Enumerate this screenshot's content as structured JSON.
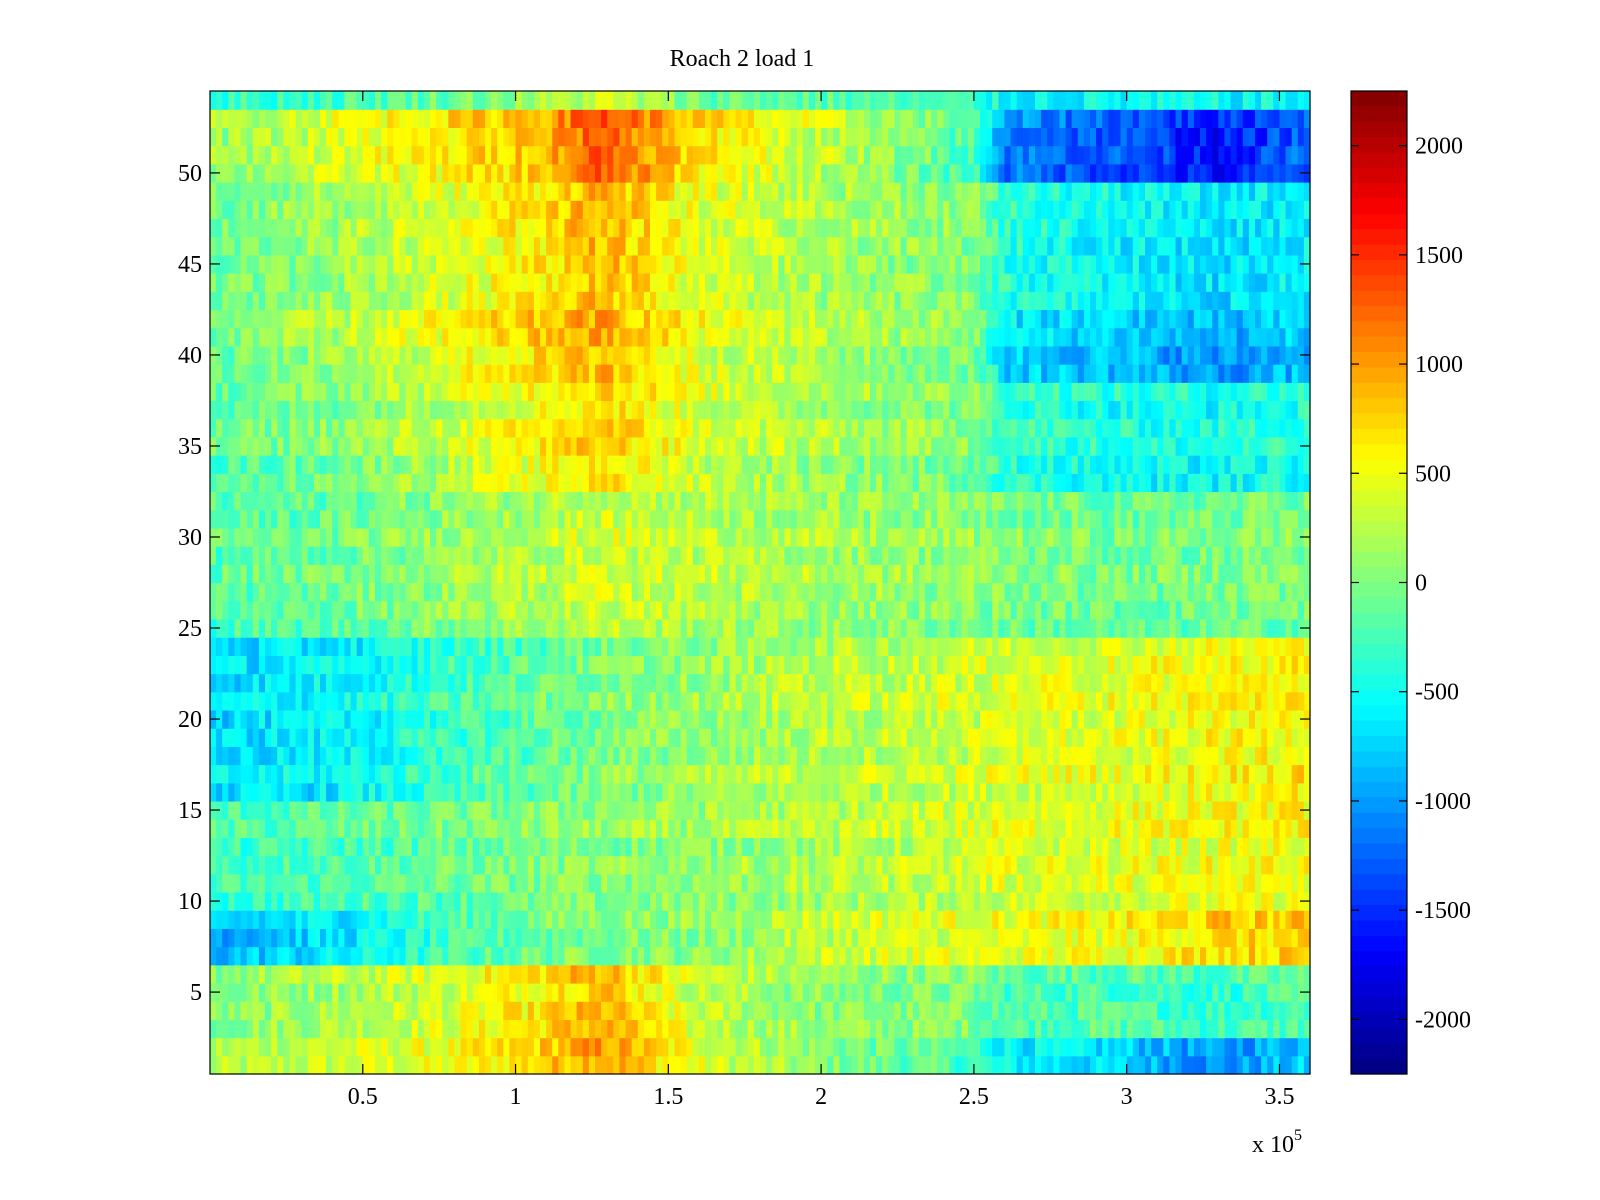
{
  "chart_data": {
    "type": "heatmap",
    "title": "Roach 2 load 1",
    "xlabel": "",
    "ylabel": "",
    "x_range": [
      0,
      360000
    ],
    "y_range": [
      0.5,
      54.5
    ],
    "x_ticks": [
      50000,
      100000,
      150000,
      200000,
      250000,
      300000,
      350000
    ],
    "x_tick_labels": [
      "0.5",
      "1",
      "1.5",
      "2",
      "2.5",
      "3",
      "3.5"
    ],
    "x_exponent_label": "x 10",
    "x_exponent_power": "5",
    "y_ticks": [
      5,
      10,
      15,
      20,
      25,
      30,
      35,
      40,
      45,
      50
    ],
    "y_tick_labels": [
      "5",
      "10",
      "15",
      "20",
      "25",
      "30",
      "35",
      "40",
      "45",
      "50"
    ],
    "rows": 54,
    "colormap": "jet",
    "color_range": [
      -2250,
      2250
    ],
    "colorbar": {
      "ticks": [
        2000,
        1500,
        1000,
        500,
        0,
        -500,
        -1000,
        -1500,
        -2000
      ],
      "tick_labels": [
        "2000",
        "1500",
        "1000",
        "500",
        "0",
        "-500",
        "-1000",
        "-1500",
        "-2000"
      ],
      "position": "right"
    },
    "grid": false,
    "approx_mean_values": {
      "x_samples": [
        0,
        40000,
        80000,
        110000,
        128000,
        160000,
        200000,
        250000,
        260000,
        300000,
        330000,
        360000
      ],
      "row_groups": [
        {
          "rows": [
            1,
            2
          ],
          "values": [
            150,
            300,
            450,
            750,
            1000,
            400,
            0,
            -300,
            -600,
            -800,
            -1100,
            -800
          ]
        },
        {
          "rows": [
            3,
            4,
            5,
            6
          ],
          "values": [
            0,
            200,
            400,
            700,
            900,
            300,
            50,
            0,
            -200,
            -200,
            -300,
            -200
          ]
        },
        {
          "rows": [
            7,
            8,
            9
          ],
          "values": [
            -900,
            -700,
            -300,
            -100,
            0,
            0,
            300,
            400,
            400,
            500,
            700,
            700
          ]
        },
        {
          "rows": [
            10,
            11,
            12,
            13,
            14,
            15
          ],
          "values": [
            -300,
            -200,
            -100,
            0,
            50,
            100,
            200,
            350,
            400,
            450,
            500,
            550
          ]
        },
        {
          "rows": [
            16,
            17,
            18,
            19,
            20,
            21,
            22,
            23,
            24
          ],
          "values": [
            -700,
            -600,
            -300,
            -100,
            0,
            100,
            250,
            350,
            400,
            450,
            550,
            600
          ]
        },
        {
          "rows": [
            25,
            26,
            27,
            28,
            29,
            30,
            31,
            32
          ],
          "values": [
            -200,
            -100,
            100,
            250,
            350,
            250,
            150,
            50,
            0,
            -100,
            -50,
            0
          ]
        },
        {
          "rows": [
            33,
            34,
            35,
            36,
            37,
            38
          ],
          "values": [
            -200,
            0,
            300,
            550,
            750,
            350,
            150,
            0,
            -300,
            -500,
            -500,
            -400
          ]
        },
        {
          "rows": [
            39,
            40,
            41,
            42
          ],
          "values": [
            -100,
            150,
            500,
            750,
            900,
            450,
            200,
            0,
            -700,
            -800,
            -1000,
            -800
          ]
        },
        {
          "rows": [
            43,
            44,
            45,
            46,
            47,
            48,
            49
          ],
          "values": [
            -100,
            100,
            400,
            650,
            900,
            400,
            150,
            0,
            -400,
            -600,
            -700,
            -600
          ]
        },
        {
          "rows": [
            50,
            51,
            52,
            53
          ],
          "values": [
            100,
            400,
            650,
            900,
            1350,
            700,
            300,
            -200,
            -1100,
            -1300,
            -1600,
            -1200
          ]
        },
        {
          "rows": [
            54
          ],
          "values": [
            -300,
            -200,
            0,
            200,
            400,
            0,
            -100,
            -300,
            -500,
            -500,
            -500,
            -500
          ]
        }
      ]
    }
  }
}
